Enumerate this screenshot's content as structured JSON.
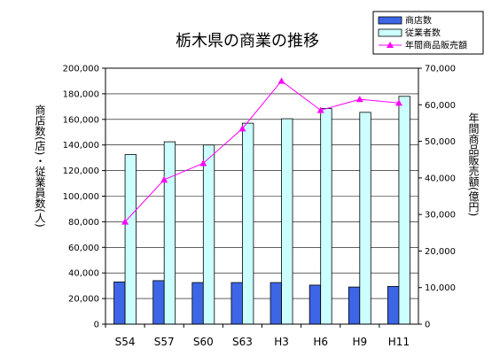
{
  "chart_data": {
    "type": "bar",
    "title": "栃木県の商業の推移",
    "categories": [
      "S54",
      "S57",
      "S60",
      "S63",
      "H3",
      "H6",
      "H9",
      "H11"
    ],
    "ylabel": "商店数(店)・従業員数(人)",
    "y2label": "年間商品販売額(億円)",
    "ylim": [
      0,
      200000
    ],
    "y2lim": [
      0,
      70000
    ],
    "yticks": [
      "0",
      "20,000",
      "40,000",
      "60,000",
      "80,000",
      "100,000",
      "120,000",
      "140,000",
      "160,000",
      "180,000",
      "200,000"
    ],
    "y2ticks": [
      "0",
      "10,000",
      "20,000",
      "30,000",
      "40,000",
      "50,000",
      "60,000",
      "70,000"
    ],
    "grid": "horizontal",
    "legend_position": "top-right",
    "series": [
      {
        "name": "商店数",
        "type": "bar",
        "axis": "left",
        "color": "#3d66e6",
        "values": [
          33000,
          34000,
          32500,
          32500,
          32500,
          30500,
          29000,
          29500
        ]
      },
      {
        "name": "従業者数",
        "type": "bar",
        "axis": "left",
        "color": "#ccffff",
        "values": [
          132500,
          142500,
          140000,
          157000,
          160500,
          168500,
          165500,
          178000
        ]
      },
      {
        "name": "年間商品販売額",
        "type": "line",
        "axis": "right",
        "color": "#ff00ff",
        "values": [
          28000,
          39500,
          44000,
          53500,
          66500,
          58500,
          61500,
          60500
        ]
      }
    ]
  }
}
